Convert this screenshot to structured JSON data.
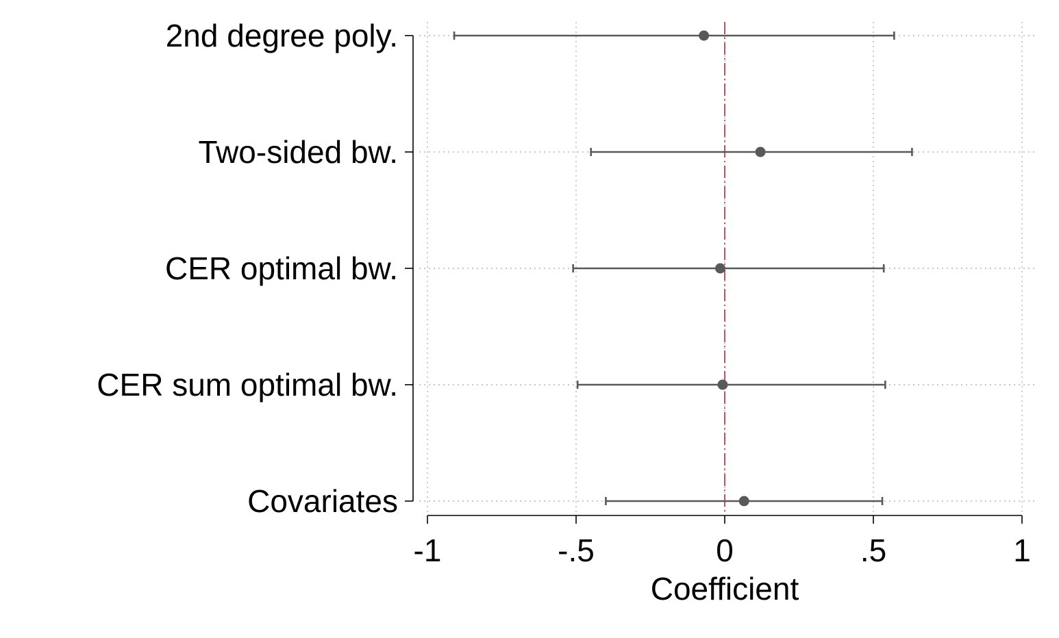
{
  "chart_data": {
    "type": "scatter",
    "subtype": "coefficient-plot",
    "title": "",
    "xlabel": "Coefficient",
    "ylabel": "",
    "xlim": [
      -1,
      1
    ],
    "x_ticks": [
      -1,
      -0.5,
      0,
      0.5,
      1
    ],
    "x_tick_labels": [
      "-1",
      "-.5",
      "0",
      ".5",
      "1"
    ],
    "grid": "dotted vertical and horizontal",
    "legend": "none",
    "reference_line": {
      "x": 0,
      "style": "dash-dot",
      "color": "#c0282d"
    },
    "marker_color": "#595959",
    "series": [
      {
        "label": "2nd degree poly.",
        "estimate": -0.07,
        "ci": [
          -0.91,
          0.57
        ]
      },
      {
        "label": "Two-sided bw.",
        "estimate": 0.12,
        "ci": [
          -0.45,
          0.63
        ]
      },
      {
        "label": "CER optimal bw.",
        "estimate": -0.015,
        "ci": [
          -0.51,
          0.535
        ]
      },
      {
        "label": "CER sum optimal bw.",
        "estimate": -0.007,
        "ci": [
          -0.495,
          0.54
        ]
      },
      {
        "label": "Covariates",
        "estimate": 0.065,
        "ci": [
          -0.4,
          0.53
        ]
      }
    ]
  }
}
